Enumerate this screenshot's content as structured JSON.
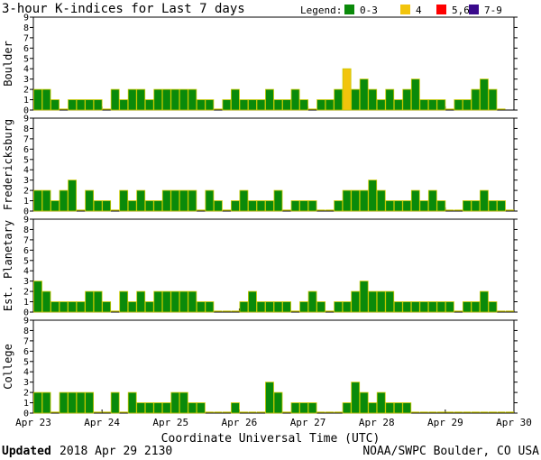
{
  "title": "3-hour K-indices for Last 7 days",
  "legend": {
    "label": "Legend:",
    "items": [
      {
        "label": "0-3",
        "color": "#0a8a0a"
      },
      {
        "label": "4",
        "color": "#f2c40c"
      },
      {
        "label": "5,6",
        "color": "#ff0000"
      },
      {
        "label": "7-9",
        "color": "#3a0a8c"
      }
    ]
  },
  "footer": {
    "updated_label": "Updated",
    "updated_value": "2018 Apr 29 2130",
    "source": "NOAA/SWPC Boulder, CO USA"
  },
  "chart_data": {
    "type": "bar",
    "title": "3-hour K-indices for Last 7 days",
    "xlabel": "Coordinate Universal Time (UTC)",
    "x_ticks": [
      "Apr 23",
      "Apr 24",
      "Apr 25",
      "Apr 26",
      "Apr 27",
      "Apr 28",
      "Apr 29",
      "Apr 30"
    ],
    "ylim": [
      0,
      9
    ],
    "y_ticks": [
      0,
      1,
      2,
      3,
      4,
      5,
      6,
      7,
      8,
      9
    ],
    "bars_per_day": 8,
    "color_bins": [
      {
        "range": [
          0,
          3
        ],
        "color": "#0a8a0a"
      },
      {
        "range": [
          4,
          4
        ],
        "color": "#f2c40c"
      },
      {
        "range": [
          5,
          6
        ],
        "color": "#ff0000"
      },
      {
        "range": [
          7,
          9
        ],
        "color": "#3a0a8c"
      }
    ],
    "series": [
      {
        "name": "Boulder",
        "values": [
          2,
          2,
          1,
          0,
          1,
          1,
          1,
          1,
          0,
          2,
          1,
          2,
          2,
          1,
          2,
          2,
          2,
          2,
          2,
          1,
          1,
          0,
          1,
          2,
          1,
          1,
          1,
          2,
          1,
          1,
          2,
          1,
          0,
          1,
          1,
          2,
          4,
          2,
          3,
          2,
          1,
          2,
          1,
          2,
          3,
          1,
          1,
          1,
          0,
          1,
          1,
          2,
          3,
          2,
          0
        ]
      },
      {
        "name": "Fredericksburg",
        "values": [
          2,
          2,
          1,
          2,
          3,
          0,
          2,
          1,
          1,
          0,
          2,
          1,
          2,
          1,
          1,
          2,
          2,
          2,
          2,
          0,
          2,
          1,
          0,
          1,
          2,
          1,
          1,
          1,
          2,
          0,
          1,
          1,
          1,
          0,
          0,
          1,
          2,
          2,
          2,
          3,
          2,
          1,
          1,
          1,
          2,
          1,
          2,
          1,
          0,
          0,
          1,
          1,
          2,
          1,
          1,
          0
        ]
      },
      {
        "name": "Est. Planetary",
        "values": [
          3,
          2,
          1,
          1,
          1,
          1,
          2,
          2,
          1,
          0,
          2,
          1,
          2,
          1,
          2,
          2,
          2,
          2,
          2,
          1,
          1,
          0,
          0,
          0,
          1,
          2,
          1,
          1,
          1,
          1,
          0,
          1,
          2,
          1,
          0,
          1,
          1,
          2,
          3,
          2,
          2,
          2,
          1,
          1,
          1,
          1,
          1,
          1,
          1,
          0,
          1,
          1,
          2,
          1,
          0,
          0
        ]
      },
      {
        "name": "College",
        "values": [
          2,
          2,
          0,
          2,
          2,
          2,
          2,
          0,
          0,
          2,
          0,
          2,
          1,
          1,
          1,
          1,
          2,
          2,
          1,
          1,
          0,
          0,
          0,
          1,
          0,
          0,
          0,
          3,
          2,
          0,
          1,
          1,
          1,
          0,
          0,
          0,
          1,
          3,
          2,
          1,
          2,
          1,
          1,
          1,
          0,
          0,
          0,
          0,
          0,
          0,
          0,
          0,
          0,
          0,
          0,
          0
        ]
      }
    ]
  }
}
